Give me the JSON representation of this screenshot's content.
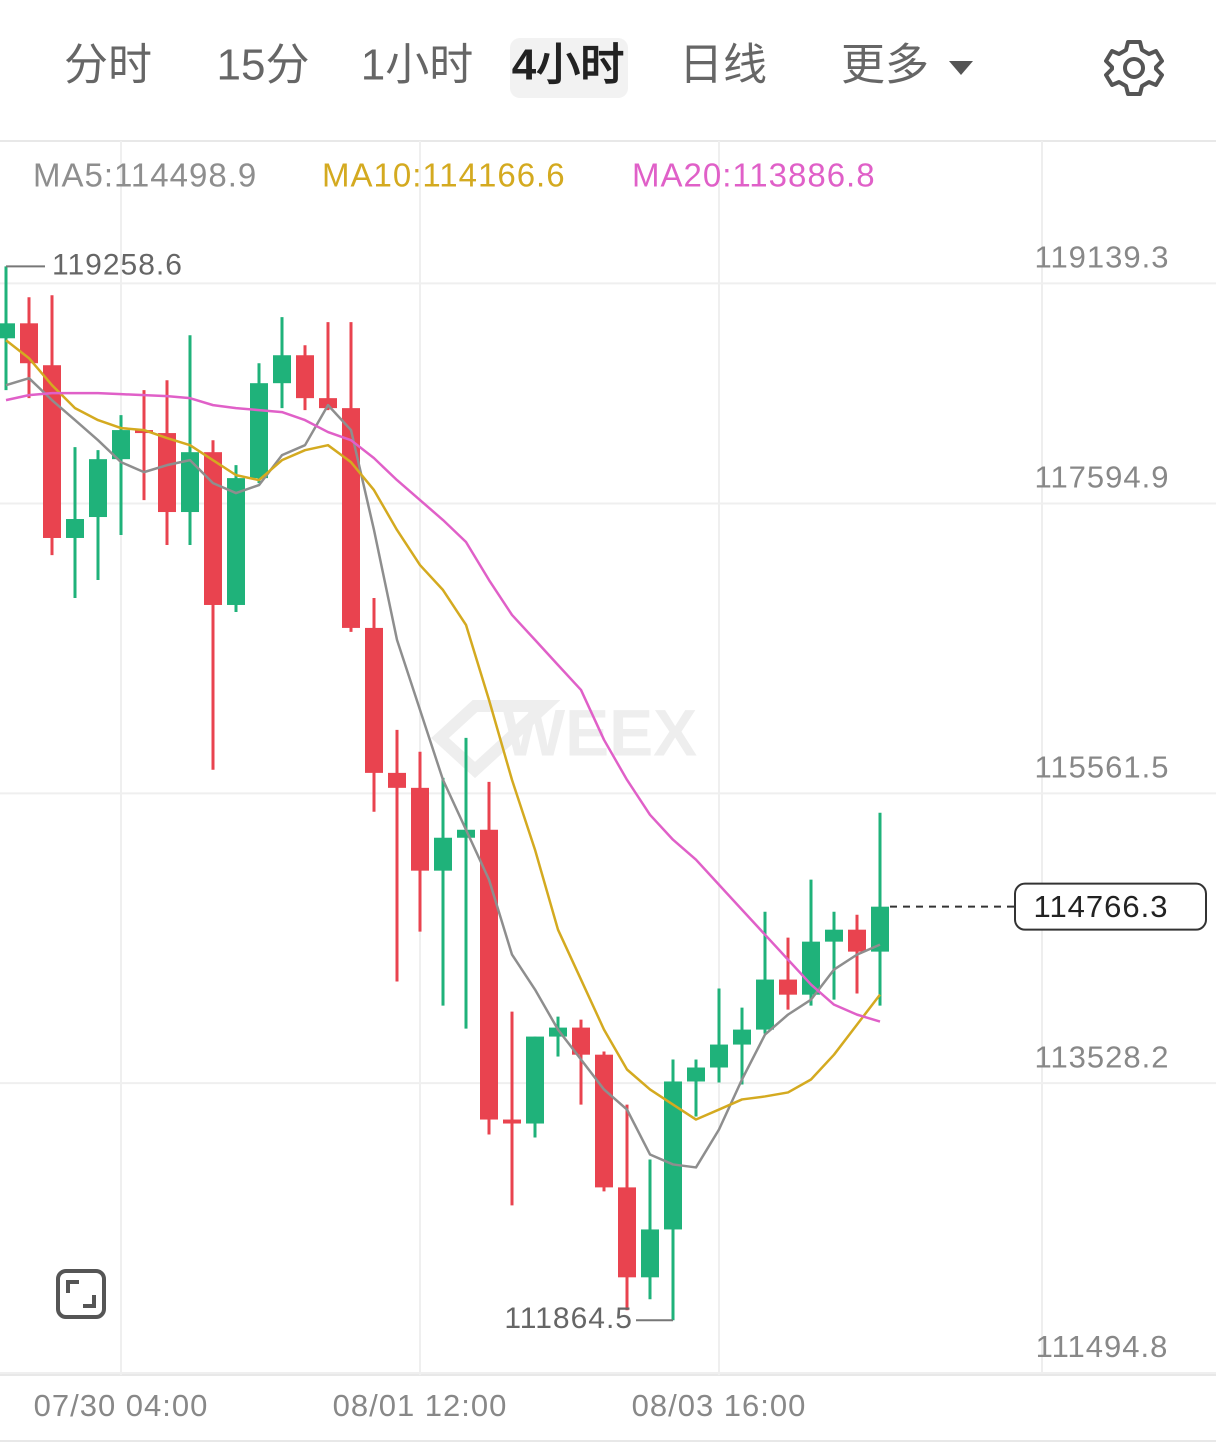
{
  "tabs": [
    "分时",
    "15分",
    "1小时",
    "4小时",
    "日线",
    "更多"
  ],
  "active_tab": 3,
  "chart_data": {
    "type": "candlestick",
    "categories": [
      null,
      null,
      null,
      null,
      null,
      "07/30 04:00",
      null,
      null,
      null,
      null,
      null,
      null,
      null,
      null,
      null,
      null,
      null,
      null,
      "08/01 12:00",
      null,
      null,
      null,
      null,
      null,
      null,
      null,
      null,
      null,
      null,
      null,
      null,
      "08/03 16:00",
      null,
      null,
      null,
      null,
      null,
      null,
      null
    ],
    "open": [
      118754,
      118859,
      118565,
      117353,
      117500,
      117906,
      118110,
      118089,
      117535,
      117955,
      116883,
      117773,
      118439,
      118635,
      118334,
      118264,
      116722,
      115705,
      115600,
      115019,
      115250,
      115306,
      113273,
      113245,
      113855,
      113918,
      113728,
      112797,
      112166,
      112502,
      113540,
      113638,
      113799,
      113904,
      114255,
      114149,
      114521,
      114605,
      114451
    ],
    "high": [
      119258.6,
      119042,
      119056,
      117990,
      117969,
      118215,
      118390,
      118460,
      118775,
      118039,
      117864,
      118579,
      118902,
      118705,
      118867,
      118867,
      116932,
      116007,
      115853,
      115670,
      115951,
      115642,
      114030,
      113855,
      113995,
      113974,
      113750,
      113378,
      112993,
      113694,
      113694,
      114192,
      114058,
      114731,
      114549,
      114956,
      114731,
      114710,
      115425
    ],
    "low": [
      118390,
      118334,
      117233,
      116932,
      117058,
      117374,
      117619,
      117304,
      117304,
      115727,
      116834,
      117738,
      118264,
      118250,
      118250,
      116694,
      115432,
      114241,
      114591,
      114072,
      113911,
      113168,
      112671,
      113147,
      113715,
      113378,
      112769,
      111935,
      112012,
      111864.5,
      113294,
      113533,
      113519,
      113876,
      114044,
      114072,
      114114,
      114157,
      114072
    ],
    "close": [
      118859,
      118579,
      117353,
      117486,
      117906,
      118110,
      118089,
      117535,
      117955,
      116883,
      117773,
      118439,
      118635,
      118334,
      118264,
      116722,
      115705,
      115600,
      115019,
      115250,
      115306,
      113273,
      113245,
      113855,
      113918,
      113728,
      112797,
      112166,
      112502,
      113540,
      113638,
      113799,
      113904,
      114255,
      114149,
      114521,
      114605,
      114451,
      114766.3
    ],
    "up_color": "#1fb27a",
    "down_color": "#e9434f",
    "series": [
      {
        "name": "MA5:114498.9",
        "color": "#8e8e8e",
        "values": [
          118425,
          118474,
          118320,
          118180,
          118039,
          117885,
          117815,
          117864,
          117899,
          117738,
          117668,
          117724,
          117934,
          118004,
          118285,
          118110,
          117409,
          116638,
          116147,
          115656,
          115306,
          114956,
          114430,
          114185,
          113904,
          113694,
          113484,
          113343,
          113028,
          112958,
          112937,
          113203,
          113554,
          113869,
          114009,
          114114,
          114325,
          114430,
          114500
        ]
      },
      {
        "name": "MA10:114166.6",
        "color": "#d4aa20",
        "values": [
          118740,
          118614,
          118425,
          118264,
          118180,
          118124,
          118110,
          118054,
          118004,
          117899,
          117794,
          117759,
          117899,
          117969,
          118004,
          117885,
          117689,
          117409,
          117163,
          116988,
          116743,
          116217,
          115656,
          115166,
          114605,
          114255,
          113904,
          113624,
          113484,
          113378,
          113273,
          113343,
          113414,
          113435,
          113463,
          113554,
          113728,
          113939,
          114149
        ]
      },
      {
        "name": "MA20:113886.8",
        "color": "#e060c8",
        "values": [
          118320,
          118355,
          118369,
          118369,
          118369,
          118362,
          118355,
          118348,
          118334,
          118285,
          118264,
          118250,
          118236,
          118180,
          118096,
          118039,
          117913,
          117759,
          117619,
          117479,
          117325,
          117058,
          116813,
          116638,
          116462,
          116287,
          115937,
          115656,
          115411,
          115236,
          115096,
          114920,
          114745,
          114570,
          114395,
          114220,
          114079,
          114009,
          113960
        ]
      }
    ],
    "ylim": [
      111494.8,
      120110
    ],
    "yticks": [
      111494.8,
      113528.2,
      115561.5,
      117594.9,
      119139.3
    ],
    "grid": true,
    "watermark": "WEEX"
  }
}
